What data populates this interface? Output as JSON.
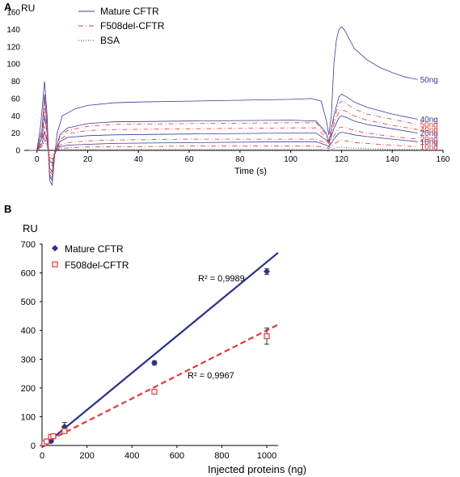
{
  "chart_data": [
    {
      "panel": "A",
      "type": "line",
      "ylabel": "RU",
      "xlabel": "Time (s)",
      "xlim": [
        -5,
        160
      ],
      "ylim": [
        0,
        160
      ],
      "xticks": [
        0,
        20,
        40,
        60,
        80,
        100,
        120,
        140,
        160
      ],
      "yticks": [
        0,
        20,
        40,
        60,
        80,
        100,
        120,
        140,
        160
      ],
      "grid": false,
      "legend": [
        {
          "name": "Mature CFTR",
          "color": "#3a3a9a",
          "style": "solid"
        },
        {
          "name": "F508del-CFTR",
          "color": "#e03a3a",
          "style": "dashdot"
        },
        {
          "name": "BSA",
          "color": "#444444",
          "style": "dotted"
        }
      ],
      "series": [
        {
          "label": "50ng",
          "group": "Mature CFTR",
          "color": "#3a3a9a",
          "label_color": "#3a3a9a",
          "x": [
            -3,
            0,
            1.5,
            3,
            4,
            5,
            6,
            7,
            8,
            10,
            15,
            20,
            30,
            40,
            60,
            80,
            100,
            108,
            112,
            114,
            115,
            116,
            117,
            118,
            119,
            120,
            121,
            122,
            125,
            130,
            135,
            140,
            145,
            150
          ],
          "y": [
            0,
            0,
            30,
            80,
            40,
            -35,
            -40,
            -5,
            20,
            40,
            48,
            52,
            55,
            56,
            57,
            58,
            59,
            60,
            57,
            35,
            18,
            40,
            100,
            128,
            140,
            143,
            140,
            135,
            118,
            105,
            96,
            90,
            85,
            82
          ]
        },
        {
          "label": "40ng",
          "group": "Mature CFTR",
          "color": "#3a3a9a",
          "label_color": "#3a3a9a",
          "x": [
            -3,
            0,
            2,
            3,
            4,
            5,
            6,
            7,
            9,
            12,
            20,
            30,
            60,
            100,
            110,
            114,
            115,
            117,
            119,
            120,
            122,
            125,
            130,
            140,
            150
          ],
          "y": [
            0,
            0,
            25,
            65,
            30,
            -30,
            -35,
            -5,
            18,
            26,
            31,
            33,
            34,
            35,
            34,
            20,
            10,
            40,
            62,
            65,
            62,
            56,
            50,
            42,
            36
          ]
        },
        {
          "label": "20ng",
          "group": "Mature CFTR",
          "color": "#3a3a9a",
          "label_color": "#3a3a9a",
          "x": [
            -3,
            0,
            2,
            3,
            4,
            5,
            6,
            7,
            9,
            12,
            20,
            30,
            60,
            100,
            110,
            114,
            115,
            117,
            119,
            120,
            122,
            125,
            130,
            140,
            150
          ],
          "y": [
            0,
            0,
            15,
            40,
            20,
            -20,
            -25,
            -5,
            10,
            15,
            17,
            18,
            19,
            20,
            20,
            12,
            8,
            25,
            38,
            40,
            38,
            34,
            30,
            25,
            20
          ]
        },
        {
          "label": "10ng",
          "group": "Mature CFTR",
          "color": "#3a3a9a",
          "label_color": "#3a3a9a",
          "x": [
            -3,
            0,
            2,
            3,
            4,
            5,
            6,
            7,
            9,
            12,
            20,
            30,
            60,
            100,
            110,
            114,
            115,
            117,
            119,
            120,
            122,
            125,
            130,
            140,
            150
          ],
          "y": [
            0,
            0,
            8,
            22,
            10,
            -12,
            -15,
            -3,
            4,
            6,
            7,
            8,
            9,
            10,
            10,
            6,
            4,
            13,
            20,
            21,
            20,
            18,
            16,
            13,
            10
          ]
        },
        {
          "label": "50ng",
          "group": "F508del-CFTR",
          "color": "#e03a3a",
          "label_color": "#e03a3a",
          "x": [
            -3,
            0,
            2,
            3,
            4,
            5,
            6,
            7,
            9,
            12,
            20,
            30,
            60,
            100,
            110,
            114,
            115,
            117,
            119,
            120,
            122,
            125,
            130,
            140,
            150
          ],
          "y": [
            0,
            0,
            22,
            60,
            28,
            -28,
            -32,
            -4,
            16,
            23,
            28,
            30,
            31,
            32,
            32,
            18,
            10,
            36,
            54,
            57,
            54,
            48,
            42,
            36,
            30
          ]
        },
        {
          "label": "40ng",
          "group": "F508del-CFTR",
          "color": "#e03a3a",
          "label_color": "#e03a3a",
          "x": [
            -3,
            0,
            2,
            3,
            4,
            5,
            6,
            7,
            9,
            12,
            20,
            30,
            60,
            100,
            110,
            114,
            115,
            117,
            119,
            120,
            122,
            125,
            130,
            140,
            150
          ],
          "y": [
            0,
            0,
            18,
            50,
            24,
            -24,
            -28,
            -4,
            12,
            19,
            23,
            24,
            25,
            26,
            26,
            15,
            8,
            30,
            45,
            47,
            45,
            40,
            35,
            29,
            24
          ]
        },
        {
          "label": "20ng",
          "group": "F508del-CFTR",
          "color": "#e03a3a",
          "label_color": "#e03a3a",
          "x": [
            -3,
            0,
            2,
            3,
            4,
            5,
            6,
            7,
            9,
            12,
            20,
            30,
            60,
            100,
            110,
            114,
            115,
            117,
            119,
            120,
            122,
            125,
            130,
            140,
            150
          ],
          "y": [
            0,
            0,
            10,
            28,
            12,
            -15,
            -18,
            -3,
            6,
            9,
            11,
            12,
            13,
            13,
            13,
            8,
            5,
            17,
            26,
            27,
            26,
            23,
            20,
            16,
            13
          ]
        },
        {
          "label": "10ng",
          "group": "F508del-CFTR",
          "color": "#e03a3a",
          "label_color": "#e03a3a",
          "x": [
            -3,
            0,
            2,
            3,
            4,
            5,
            6,
            7,
            9,
            12,
            20,
            30,
            60,
            100,
            110,
            114,
            115,
            117,
            119,
            120,
            122,
            125,
            130,
            140,
            150
          ],
          "y": [
            0,
            0,
            5,
            14,
            6,
            -8,
            -10,
            -2,
            2,
            3,
            4,
            4,
            5,
            5,
            5,
            3,
            2,
            7,
            11,
            12,
            11,
            9,
            8,
            6,
            4
          ]
        },
        {
          "label": "",
          "group": "BSA",
          "color": "#444444",
          "label_color": "#444444",
          "x": [
            -3,
            0,
            2,
            3,
            4,
            5,
            6,
            7,
            9,
            20,
            60,
            100,
            112,
            114,
            115,
            116,
            118,
            120,
            122,
            130,
            140,
            150
          ],
          "y": [
            0,
            0,
            4,
            12,
            5,
            -5,
            -6,
            -1,
            1,
            1,
            1,
            1,
            1,
            0,
            -1,
            1,
            3,
            4,
            3,
            2,
            1,
            1
          ]
        }
      ]
    },
    {
      "panel": "B",
      "type": "scatter",
      "ylabel": "RU",
      "xlabel": "Injected proteins (ng)",
      "xlim": [
        0,
        1050
      ],
      "ylim": [
        0,
        700
      ],
      "xticks": [
        0,
        200,
        400,
        600,
        800,
        1000
      ],
      "yticks": [
        0,
        100,
        200,
        300,
        400,
        500,
        600,
        700
      ],
      "grid": false,
      "legend_position": "top-left",
      "series": [
        {
          "name": "Mature CFTR",
          "color": "#2b2e8c",
          "marker": "diamond",
          "x": [
            10,
            20,
            40,
            50,
            100,
            500,
            1000
          ],
          "y": [
            5,
            10,
            15,
            30,
            65,
            287,
            605
          ],
          "err": [
            3,
            3,
            6,
            5,
            15,
            7,
            10
          ],
          "fit": {
            "x": [
              0,
              1050
            ],
            "y": [
              -5,
              670
            ],
            "style": "solid"
          },
          "r2": "R² = 0,9989"
        },
        {
          "name": "F508del-CFTR",
          "color": "#e03a3a",
          "marker": "square",
          "x": [
            10,
            20,
            40,
            50,
            100,
            500,
            1000
          ],
          "y": [
            8,
            14,
            30,
            32,
            50,
            187,
            380
          ],
          "err": [
            3,
            3,
            6,
            5,
            8,
            6,
            28
          ],
          "fit": {
            "x": [
              0,
              1050
            ],
            "y": [
              5,
              420
            ],
            "style": "dashed"
          },
          "r2": "R² = 0,9967"
        }
      ]
    }
  ]
}
